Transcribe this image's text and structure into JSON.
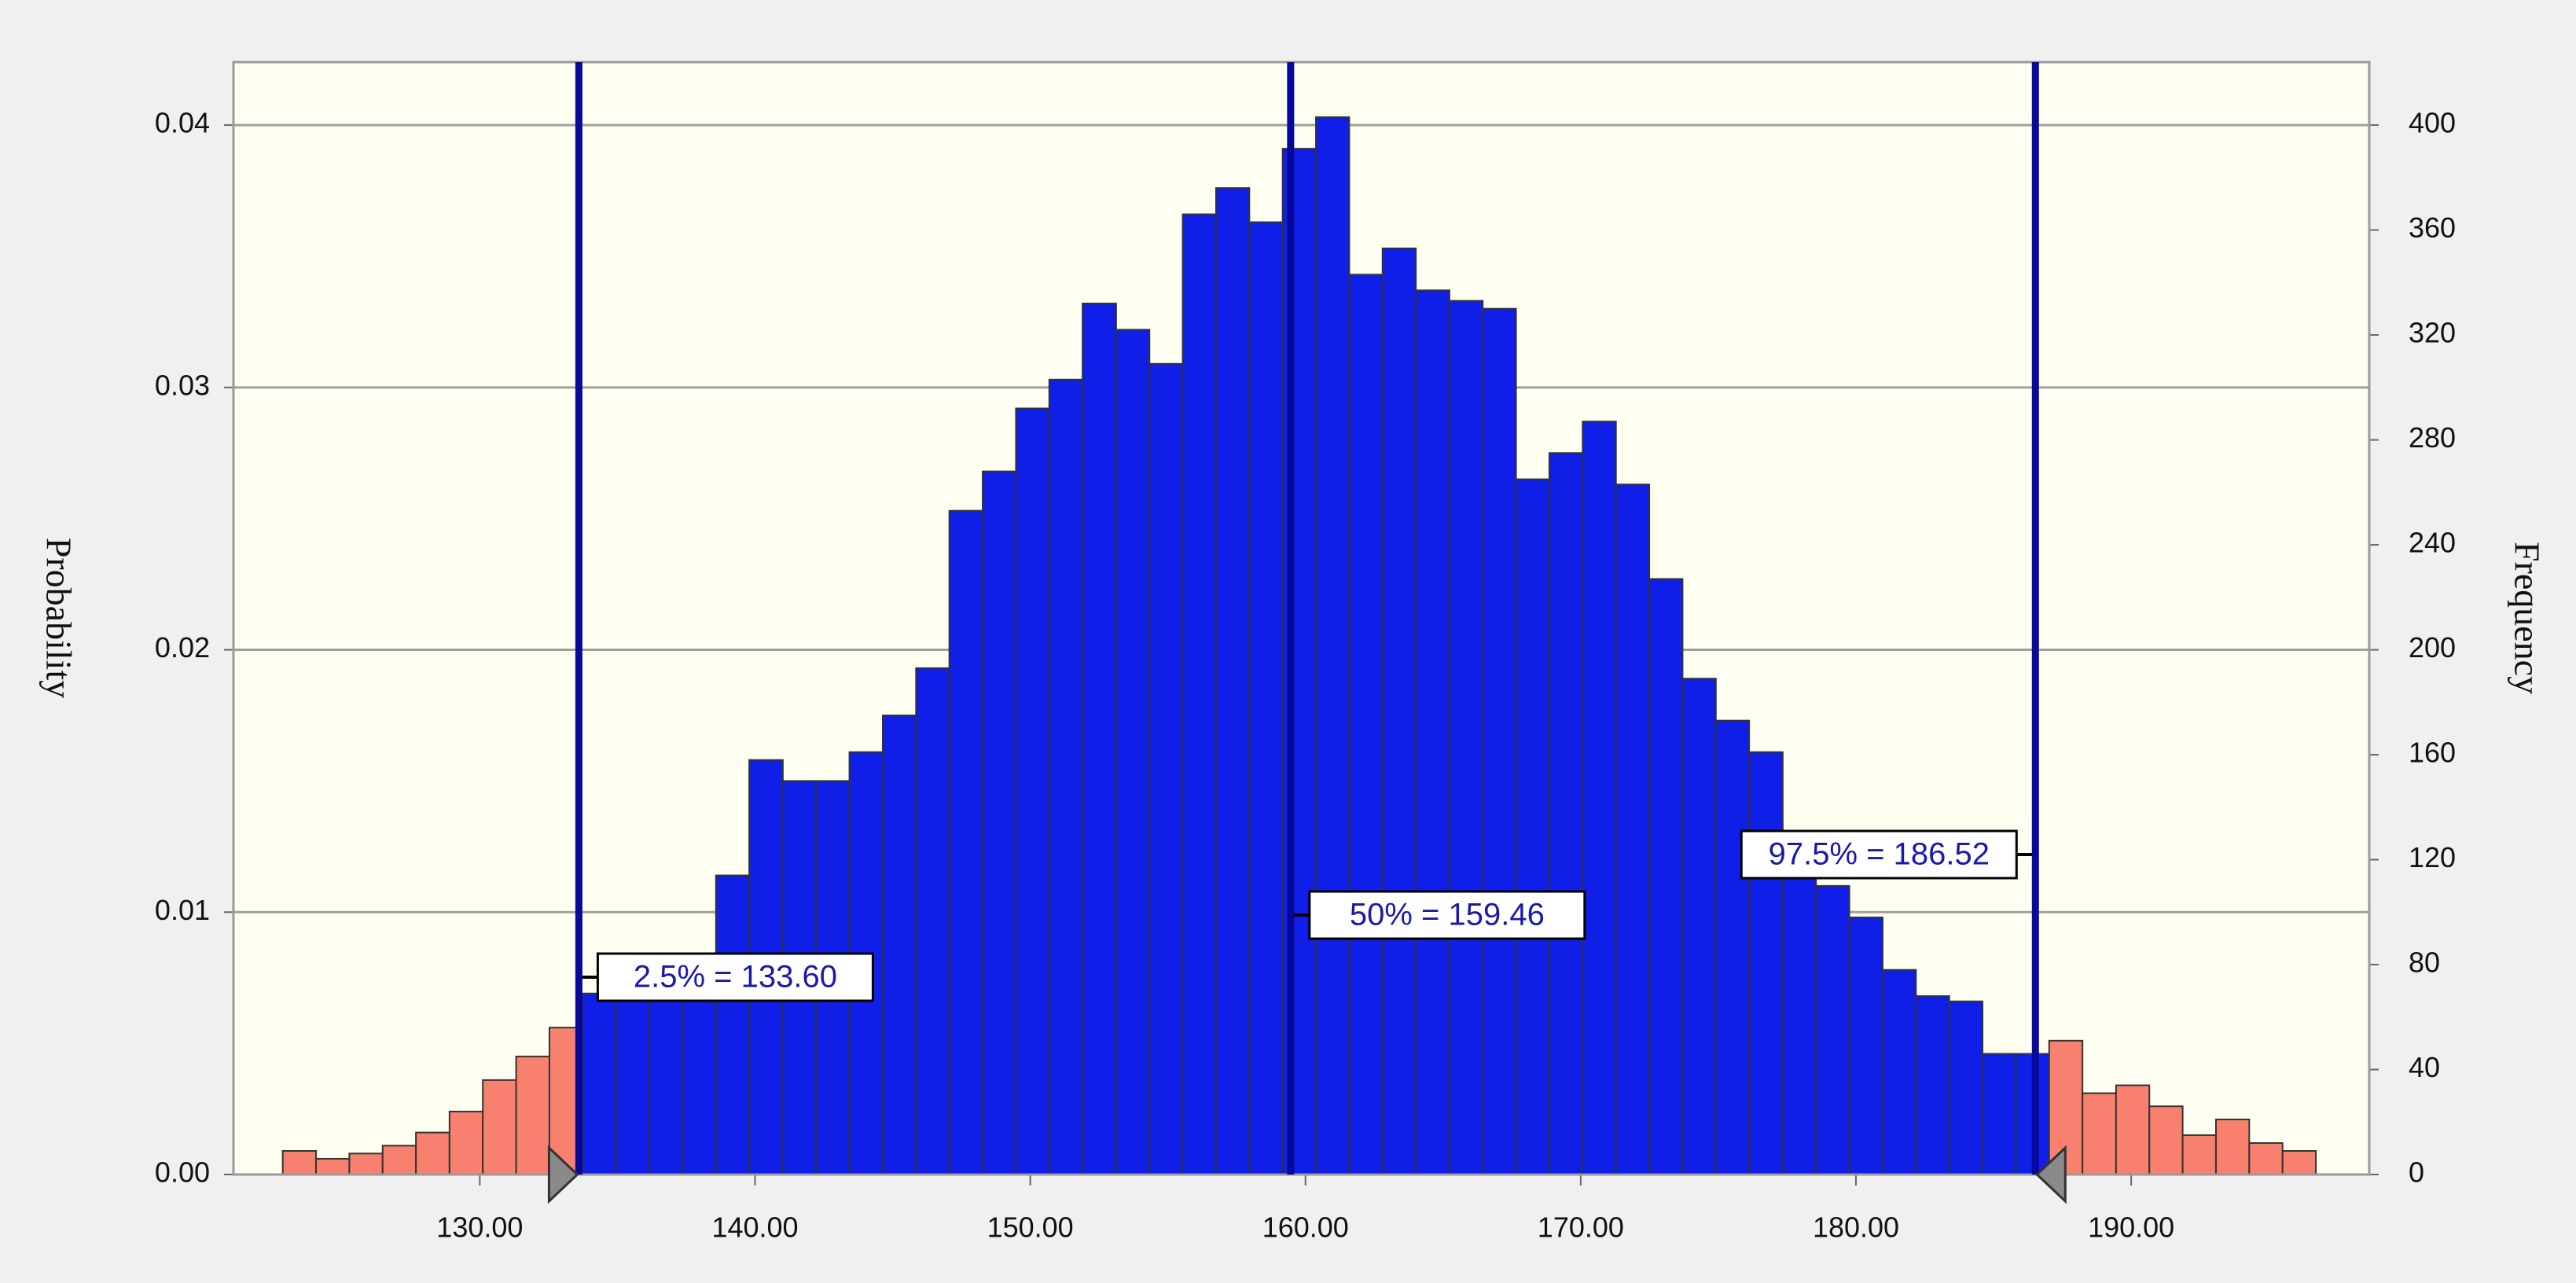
{
  "chart_data": {
    "type": "histogram",
    "ylabel": "Probability",
    "y2label": "Frequency",
    "xlim": [
      121.05,
      198.65
    ],
    "ylim": [
      0,
      0.0424
    ],
    "y2lim": [
      0,
      424
    ],
    "xticks": [
      {
        "value": 130,
        "label": "130.00"
      },
      {
        "value": 140,
        "label": "140.00"
      },
      {
        "value": 150,
        "label": "150.00"
      },
      {
        "value": 160,
        "label": "160.00"
      },
      {
        "value": 170,
        "label": "170.00"
      },
      {
        "value": 180,
        "label": "180.00"
      },
      {
        "value": 190,
        "label": "190.00"
      }
    ],
    "yticks": [
      {
        "value": 0,
        "label": "0.00"
      },
      0.01,
      0.02,
      0.03,
      0.04
    ],
    "y2ticks": [
      0,
      40,
      80,
      120,
      160,
      200,
      240,
      280,
      320,
      360,
      400
    ],
    "grid": true,
    "bins": [
      122.84,
      124.05,
      125.26,
      126.47,
      127.68,
      128.9,
      130.11,
      131.32,
      132.53,
      133.74,
      134.95,
      136.16,
      137.37,
      138.58,
      139.79,
      141.01,
      142.22,
      143.43,
      144.64,
      145.85,
      147.06,
      148.27,
      149.48,
      150.69,
      151.9,
      153.12,
      154.33,
      155.54,
      156.75,
      157.96,
      159.17,
      160.38,
      161.59,
      162.8,
      164.01,
      165.23,
      166.44,
      167.65,
      168.86,
      170.07,
      171.28,
      172.49,
      173.7,
      174.91,
      176.12,
      177.34,
      178.55,
      179.76,
      180.97,
      182.18,
      183.39,
      184.6,
      185.81,
      187.02,
      188.23,
      189.45,
      190.66,
      191.87,
      193.08,
      194.29,
      195.5,
      196.71
    ],
    "series": [
      {
        "axis": "y2",
        "color": "#0f1fe8",
        "tail_color": "#f8806e",
        "values": [
          9,
          6,
          8,
          11,
          16,
          24,
          36,
          45,
          56,
          69,
          70,
          72,
          75,
          114,
          158,
          150,
          150,
          161,
          175,
          193,
          253,
          268,
          292,
          303,
          332,
          322,
          309,
          366,
          376,
          363,
          391,
          403,
          343,
          353,
          337,
          333,
          330,
          265,
          275,
          287,
          263,
          227,
          189,
          173,
          161,
          116,
          110,
          98,
          78,
          68,
          66,
          46,
          46,
          51,
          31,
          34,
          26,
          15,
          21,
          12,
          9
        ]
      }
    ],
    "markers": [
      {
        "label": "2.5% = 133.60",
        "value": 133.6
      },
      {
        "label": "50% = 159.46",
        "value": 159.46
      },
      {
        "label": "97.5% = 186.52",
        "value": 186.52
      }
    ],
    "marker_color": "#08089a"
  }
}
